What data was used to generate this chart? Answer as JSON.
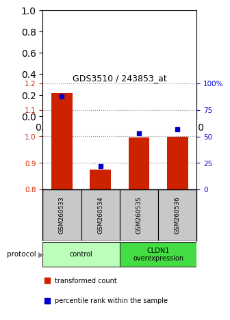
{
  "title": "GDS3510 / 243853_at",
  "samples": [
    "GSM260533",
    "GSM260534",
    "GSM260535",
    "GSM260536"
  ],
  "red_values": [
    1.165,
    0.875,
    0.995,
    1.0
  ],
  "blue_values": [
    88,
    22,
    53,
    57
  ],
  "ylim_left": [
    0.8,
    1.2
  ],
  "ylim_right": [
    0,
    100
  ],
  "yticks_left": [
    0.8,
    0.9,
    1.0,
    1.1,
    1.2
  ],
  "yticks_right": [
    0,
    25,
    50,
    75,
    100
  ],
  "ytick_labels_right": [
    "0",
    "25",
    "50",
    "75",
    "100%"
  ],
  "bar_color": "#cc2200",
  "square_color": "#0000cc",
  "groups": [
    {
      "label": "control",
      "start": 0,
      "end": 2,
      "color": "#bbffbb"
    },
    {
      "label": "CLDN1\noverexpression",
      "start": 2,
      "end": 4,
      "color": "#44dd44"
    }
  ],
  "protocol_label": "protocol",
  "legend_red": "transformed count",
  "legend_blue": "percentile rank within the sample",
  "background_color": "#ffffff",
  "tick_label_color_left": "#cc2200",
  "tick_label_color_right": "#0000cc",
  "sample_box_color": "#c8c8c8"
}
